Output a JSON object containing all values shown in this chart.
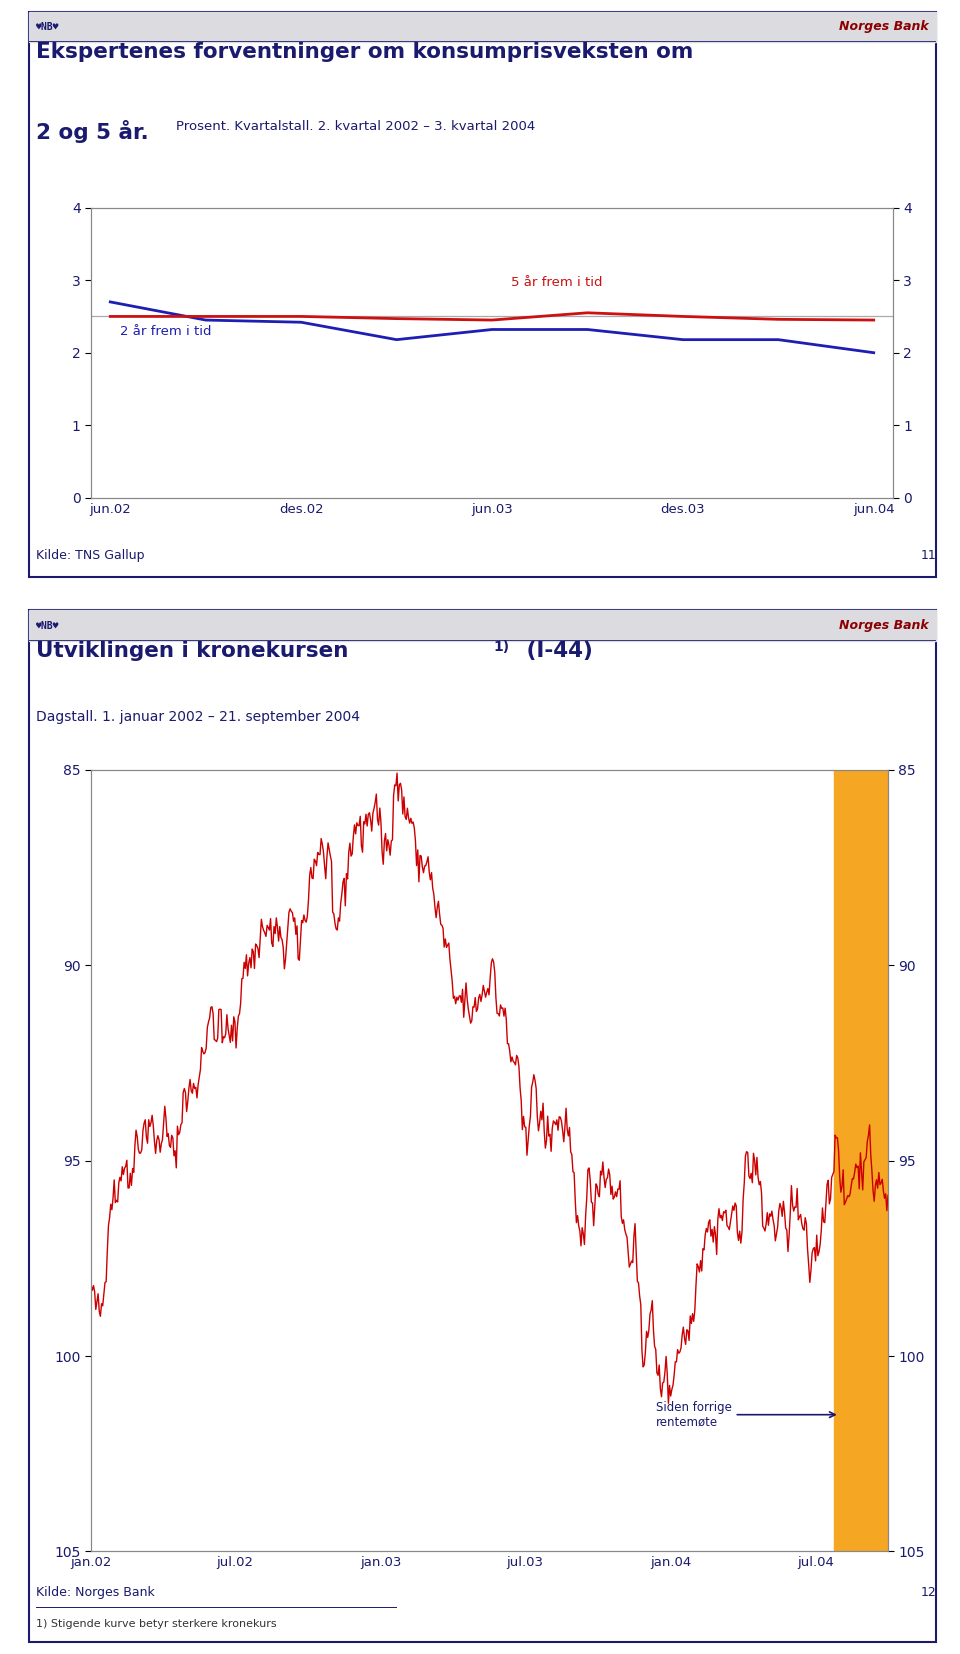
{
  "page_bg": "#ffffff",
  "panel1": {
    "title_line1": "Ekspertenes forventninger om konsumprisveksten om",
    "title_line2": "2 og 5 år.",
    "subtitle": "Prosent. Kvartalstall. 2. kvartal 2002 – 3. kvartal 2004",
    "source": "Kilde: TNS Gallup",
    "page_num": "11",
    "ylim": [
      0,
      4
    ],
    "yticks": [
      0,
      1,
      2,
      3,
      4
    ],
    "x_labels": [
      "jun.02",
      "des.02",
      "jun.03",
      "des.03",
      "jun.04"
    ],
    "blue_label": "2 år frem i tid",
    "red_label": "5 år frem i tid",
    "blue_data": [
      2.7,
      2.45,
      2.42,
      2.18,
      2.32,
      2.32,
      2.18,
      2.18,
      2.0
    ],
    "red_data": [
      2.5,
      2.5,
      2.5,
      2.47,
      2.45,
      2.55,
      2.5,
      2.46,
      2.45
    ],
    "header_bg": "#dcdce0"
  },
  "panel2": {
    "title_main": "Utviklingen i kronekursen",
    "title_super": "1)",
    "title_rest": " (I-44)",
    "subtitle": "Dagstall. 1. januar 2002 – 21. september 2004",
    "source": "Kilde: Norges Bank",
    "footnote": "1) Stigende kurve betyr sterkere kronekurs",
    "page_num": "12",
    "ylim": [
      105,
      85
    ],
    "yticks": [
      85,
      90,
      95,
      100,
      105
    ],
    "x_labels": [
      "jan.02",
      "jul.02",
      "jan.03",
      "jul.03",
      "jan.04",
      "jul.04"
    ],
    "annotation": "Siden forrige\nrentemøte",
    "highlight_color": "#f5a623",
    "line_color": "#cc0000",
    "header_bg": "#dcdce0"
  },
  "title_color": "#1a1a6e",
  "axis_color": "#1a1a6e",
  "ref_line_color": "#aaaaaa",
  "border_color": "#1a1a6e",
  "nb_logo_color": "#1a1a6e",
  "norges_bank_color": "#8b0000"
}
